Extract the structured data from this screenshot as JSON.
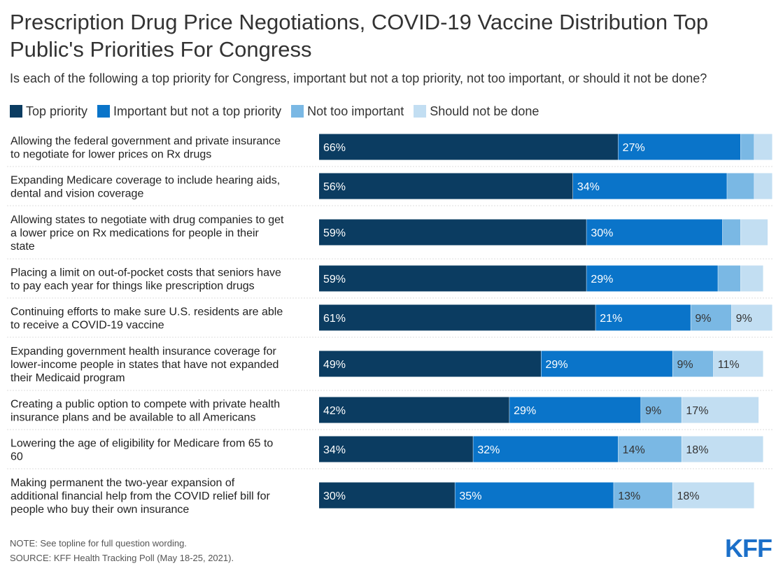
{
  "header": {
    "title": "Prescription Drug Price Negotiations, COVID-19 Vaccine Distribution Top Public's Priorities For Congress",
    "subtitle": "Is each of the following a top priority for Congress, important but not a top priority, not too important, or should it not be done?"
  },
  "chart_data": {
    "type": "bar",
    "orientation": "horizontal",
    "stacked": true,
    "value_unit": "%",
    "xlim": [
      0,
      100
    ],
    "grid": false,
    "legend_position": "top-left",
    "categories": [
      "Allowing the federal government and private insurance to negotiate for lower prices on Rx drugs",
      "Expanding Medicare coverage to include hearing aids, dental and vision coverage",
      "Allowing states to negotiate with drug companies to get a lower price on Rx medications for people in their state",
      "Placing a limit on out-of-pocket costs that seniors have to pay each year for things like prescription drugs",
      "Continuing efforts to make sure U.S. residents are able to receive a COVID-19 vaccine",
      "Expanding government health insurance coverage for lower-income people in states that have not expanded their Medicaid program",
      "Creating a public option to compete with private health insurance plans and be available to all Americans",
      "Lowering the age of eligibility for Medicare from 65 to 60",
      "Making permanent the two-year expansion of additional financial help from the COVID relief bill for people who buy their own insurance"
    ],
    "category_lines": [
      [
        "Allowing the federal government and private insurance",
        "to negotiate for lower prices on Rx drugs"
      ],
      [
        "Expanding Medicare coverage to include hearing aids,",
        "dental and vision coverage"
      ],
      [
        "Allowing states to negotiate with drug companies to get",
        "a lower price on Rx medications for people in their",
        "state"
      ],
      [
        "Placing a limit on out-of-pocket costs that seniors have",
        "to pay each year for things like prescription drugs"
      ],
      [
        "Continuing efforts to make sure U.S. residents are able",
        "to receive a COVID-19 vaccine"
      ],
      [
        "Expanding government health insurance coverage for",
        "lower-income people in states that have not expanded",
        "their Medicaid program"
      ],
      [
        "Creating a public option to compete with private health",
        "insurance plans and be available to all Americans"
      ],
      [
        "Lowering the age of eligibility for Medicare from 65 to",
        "60"
      ],
      [
        "Making permanent the two-year expansion of",
        "additional financial help from the COVID relief bill for",
        "people who buy their own insurance"
      ]
    ],
    "series": [
      {
        "name": "Top priority",
        "color": "#0b3c61",
        "label_color": "#ffffff",
        "values": [
          66,
          56,
          59,
          59,
          61,
          49,
          42,
          34,
          30
        ],
        "labels": [
          "66%",
          "56%",
          "59%",
          "59%",
          "61%",
          "49%",
          "42%",
          "34%",
          "30%"
        ]
      },
      {
        "name": "Important but not a top priority",
        "color": "#0a74c9",
        "label_color": "#ffffff",
        "values": [
          27,
          34,
          30,
          29,
          21,
          29,
          29,
          32,
          35
        ],
        "labels": [
          "27%",
          "34%",
          "30%",
          "29%",
          "21%",
          "29%",
          "29%",
          "32%",
          "35%"
        ]
      },
      {
        "name": "Not too important",
        "color": "#7ab8e4",
        "label_color": "#333333",
        "values": [
          3,
          6,
          4,
          5,
          9,
          9,
          9,
          14,
          13
        ],
        "labels": [
          "",
          "",
          "",
          "",
          "9%",
          "9%",
          "9%",
          "14%",
          "13%"
        ]
      },
      {
        "name": "Should not be done",
        "color": "#c2def2",
        "label_color": "#333333",
        "values": [
          4,
          4,
          6,
          5,
          9,
          11,
          17,
          18,
          18
        ],
        "labels": [
          "",
          "",
          "",
          "",
          "9%",
          "11%",
          "17%",
          "18%",
          "18%"
        ]
      }
    ]
  },
  "footer": {
    "note": "NOTE: See topline for full question wording.",
    "source": "SOURCE: KFF Health Tracking Poll (May 18-25, 2021).",
    "logo_text": "KFF"
  },
  "colors": {
    "logo": "#1b6fc9"
  }
}
